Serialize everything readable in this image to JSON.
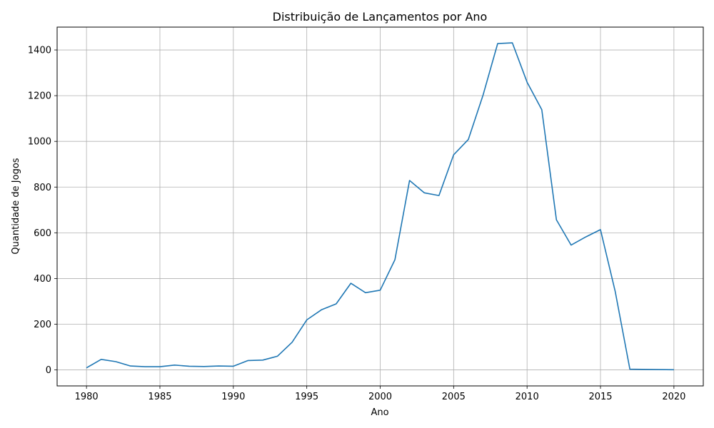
{
  "chart_data": {
    "type": "line",
    "title": "Distribuição de Lançamentos por Ano",
    "xlabel": "Ano",
    "ylabel": "Quantidade de Jogos",
    "xlim": [
      1978,
      2022
    ],
    "ylim": [
      -70,
      1500
    ],
    "xticks": [
      1980,
      1985,
      1990,
      1995,
      2000,
      2005,
      2010,
      2015,
      2020
    ],
    "yticks": [
      0,
      200,
      400,
      600,
      800,
      1000,
      1200,
      1400
    ],
    "grid": true,
    "line_color": "#1f77b4",
    "series": [
      {
        "x": [
          1980,
          1981,
          1982,
          1983,
          1984,
          1985,
          1986,
          1987,
          1988,
          1989,
          1990,
          1991,
          1992,
          1993,
          1994,
          1995,
          1996,
          1997,
          1998,
          1999,
          2000,
          2001,
          2002,
          2003,
          2004,
          2005,
          2006,
          2007,
          2008,
          2009,
          2010,
          2011,
          2012,
          2013,
          2014,
          2015,
          2016,
          2017,
          2020
        ],
        "values": [
          9,
          46,
          36,
          17,
          14,
          14,
          21,
          16,
          15,
          17,
          16,
          41,
          43,
          60,
          121,
          219,
          263,
          289,
          379,
          338,
          349,
          482,
          829,
          775,
          763,
          941,
          1008,
          1202,
          1428,
          1431,
          1259,
          1139,
          657,
          546,
          582,
          614,
          344,
          3,
          1
        ]
      }
    ]
  }
}
